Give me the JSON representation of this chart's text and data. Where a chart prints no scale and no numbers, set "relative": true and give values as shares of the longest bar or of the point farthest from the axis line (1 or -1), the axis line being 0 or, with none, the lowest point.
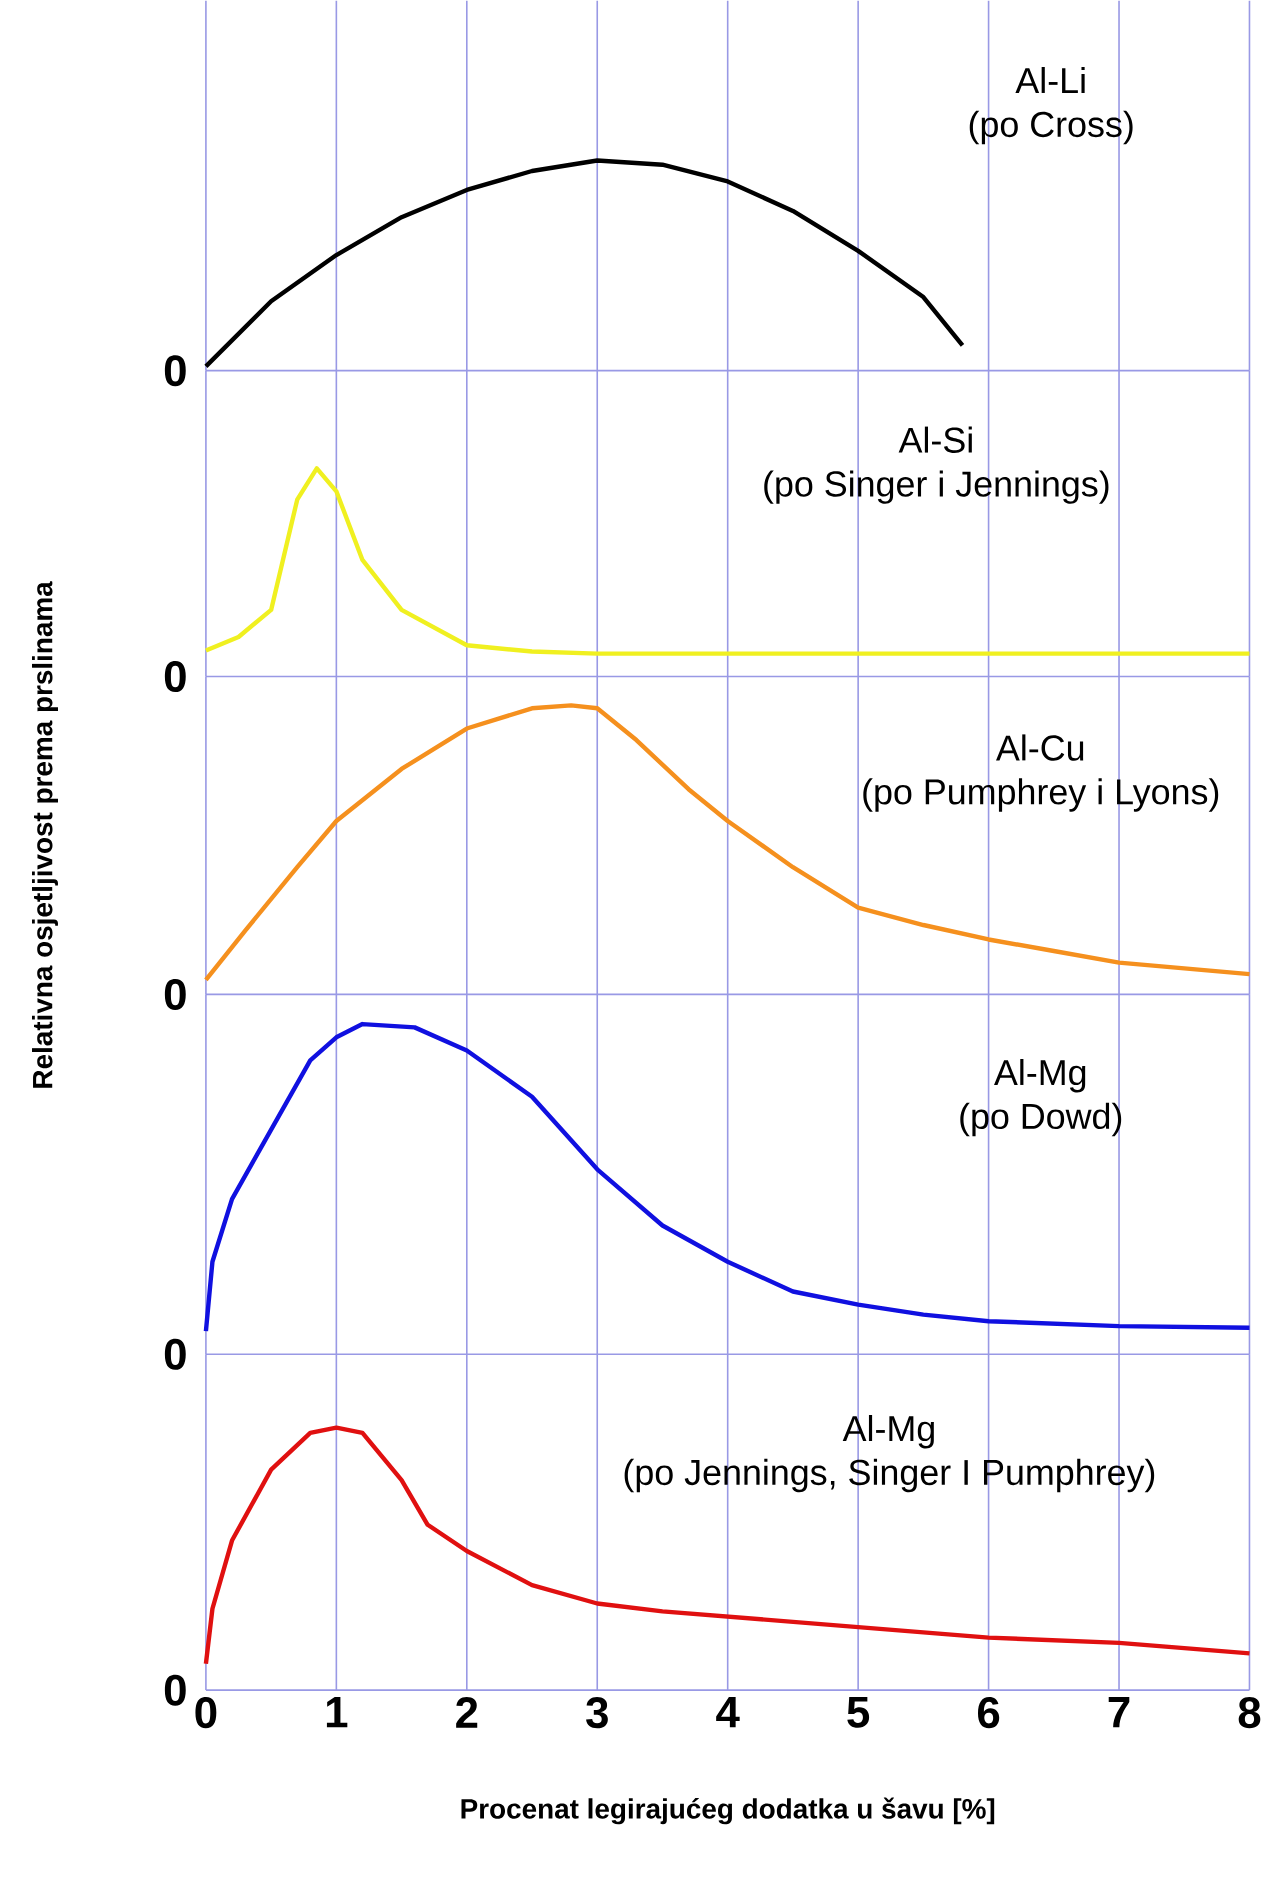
{
  "chart_data": [
    {
      "type": "line",
      "title": "Al-Li",
      "subtitle": "(po Cross)",
      "relative": true,
      "annotations": [
        "0"
      ],
      "xlim": [
        0,
        8
      ],
      "xticks": [
        0,
        1,
        2,
        3,
        4,
        5,
        6,
        7,
        8
      ],
      "tick_labels": false,
      "grid": "x",
      "x": [
        0,
        0.5,
        1,
        1.5,
        2,
        2.5,
        3,
        3.5,
        4,
        4.5,
        5,
        5.5,
        5.8
      ],
      "series": [
        {
          "color": "#000000",
          "values": [
            0.02,
            0.33,
            0.55,
            0.73,
            0.86,
            0.95,
            1,
            0.98,
            0.9,
            0.76,
            0.57,
            0.35,
            0.12
          ]
        }
      ]
    },
    {
      "type": "line",
      "title": "Al-Si",
      "subtitle": "(po Singer i Jennings)",
      "relative": true,
      "annotations": [
        "0"
      ],
      "xlim": [
        0,
        8
      ],
      "xticks": [
        0,
        1,
        2,
        3,
        4,
        5,
        6,
        7,
        8
      ],
      "tick_labels": false,
      "grid": "x",
      "x": [
        0,
        0.25,
        0.5,
        0.7,
        0.85,
        1,
        1.2,
        1.5,
        2,
        2.5,
        3,
        4,
        5,
        6,
        7,
        8
      ],
      "series": [
        {
          "color": "#f0f020",
          "values": [
            0.125,
            0.19,
            0.32,
            0.85,
            1,
            0.89,
            0.56,
            0.32,
            0.15,
            0.12,
            0.11,
            0.11,
            0.11,
            0.11,
            0.11,
            0.11
          ]
        }
      ]
    },
    {
      "type": "line",
      "title": "Al-Cu",
      "subtitle": "(po Pumphrey i Lyons)",
      "ylabel": "Relativna osjetljivost prema prslinama",
      "relative": true,
      "annotations": [
        "0"
      ],
      "xlim": [
        0,
        8
      ],
      "xticks": [
        0,
        1,
        2,
        3,
        4,
        5,
        6,
        7,
        8
      ],
      "tick_labels": false,
      "grid": "x",
      "x": [
        0,
        0.3,
        0.7,
        1,
        1.5,
        2,
        2.5,
        2.8,
        3,
        3.3,
        3.7,
        4,
        4.5,
        5,
        5.5,
        6,
        6.5,
        7,
        8
      ],
      "series": [
        {
          "color": "#f5901e",
          "values": [
            0.05,
            0.22,
            0.44,
            0.6,
            0.78,
            0.92,
            0.99,
            1,
            0.99,
            0.88,
            0.71,
            0.6,
            0.44,
            0.3,
            0.24,
            0.19,
            0.15,
            0.11,
            0.07
          ]
        }
      ]
    },
    {
      "type": "line",
      "title": "Al-Mg",
      "subtitle": "(po Dowd)",
      "relative": true,
      "annotations": [
        "0"
      ],
      "xlim": [
        0,
        8
      ],
      "xticks": [
        0,
        1,
        2,
        3,
        4,
        5,
        6,
        7,
        8
      ],
      "tick_labels": false,
      "grid": "x",
      "x": [
        0,
        0.05,
        0.2,
        0.5,
        0.8,
        1,
        1.2,
        1.6,
        2,
        2.5,
        3,
        3.5,
        4,
        4.5,
        5,
        5.5,
        6,
        7,
        8
      ],
      "series": [
        {
          "color": "#1010e0",
          "values": [
            0.07,
            0.28,
            0.47,
            0.68,
            0.89,
            0.96,
            1,
            0.99,
            0.92,
            0.78,
            0.56,
            0.39,
            0.28,
            0.19,
            0.15,
            0.12,
            0.1,
            0.085,
            0.08
          ]
        }
      ]
    },
    {
      "type": "line",
      "title": "Al-Mg",
      "subtitle": "(po Jennings, Singer I Pumphrey)",
      "xlabel": "Procenat legirajućeg dodatka u šavu [%]",
      "relative": true,
      "annotations": [
        "0"
      ],
      "xlim": [
        0,
        8
      ],
      "xticks": [
        0,
        1,
        2,
        3,
        4,
        5,
        6,
        7,
        8
      ],
      "grid": "x",
      "x": [
        0,
        0.05,
        0.2,
        0.5,
        0.8,
        1,
        1.2,
        1.5,
        1.7,
        2,
        2.5,
        3,
        3.5,
        4,
        5,
        6,
        7,
        8
      ],
      "series": [
        {
          "color": "#e01010",
          "values": [
            0.1,
            0.31,
            0.57,
            0.84,
            0.98,
            1,
            0.98,
            0.8,
            0.63,
            0.53,
            0.4,
            0.33,
            0.3,
            0.28,
            0.24,
            0.2,
            0.18,
            0.14
          ]
        }
      ]
    }
  ]
}
